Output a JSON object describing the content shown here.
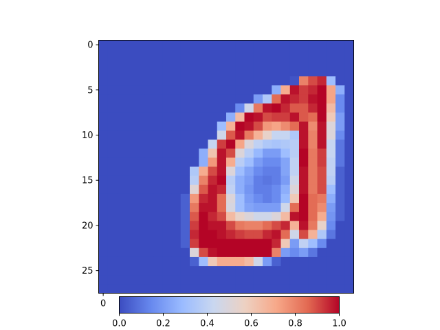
{
  "chart_data": {
    "type": "heatmap",
    "title": "",
    "xlabel": "",
    "ylabel": "",
    "colormap": "coolwarm",
    "colormap_stops": [
      "#3b4cc0",
      "#6788ee",
      "#9abbff",
      "#c9d7f0",
      "#edd1c2",
      "#f7a889",
      "#e26952",
      "#b40426"
    ],
    "vmin": 0.0,
    "vmax": 1.0,
    "image_rows": 28,
    "image_cols": 28,
    "yticks": [
      0,
      5,
      10,
      15,
      20,
      25
    ],
    "ytick_labels": [
      "0",
      "5",
      "10",
      "15",
      "20",
      "25"
    ],
    "xticks": [
      0
    ],
    "xtick_labels": [
      "0"
    ],
    "colorbar": {
      "orientation": "horizontal",
      "placement": "bottom",
      "ticks": [
        0.0,
        0.2,
        0.4,
        0.6,
        0.8,
        1.0
      ],
      "tick_labels": [
        "0.0",
        "0.2",
        "0.4",
        "0.6",
        "0.8",
        "1.0"
      ]
    },
    "values": [
      [
        0,
        0,
        0,
        0,
        0,
        0,
        0,
        0,
        0,
        0,
        0,
        0,
        0,
        0,
        0,
        0,
        0,
        0,
        0,
        0,
        0,
        0,
        0,
        0,
        0,
        0,
        0,
        0
      ],
      [
        0,
        0,
        0,
        0,
        0,
        0,
        0,
        0,
        0,
        0,
        0,
        0,
        0,
        0,
        0,
        0,
        0,
        0,
        0,
        0,
        0,
        0,
        0,
        0,
        0,
        0,
        0,
        0
      ],
      [
        0,
        0,
        0,
        0,
        0,
        0,
        0,
        0,
        0,
        0,
        0,
        0,
        0,
        0,
        0,
        0,
        0,
        0,
        0,
        0,
        0,
        0,
        0,
        0,
        0,
        0,
        0,
        0
      ],
      [
        0,
        0,
        0,
        0,
        0,
        0,
        0,
        0,
        0,
        0,
        0,
        0,
        0,
        0,
        0,
        0,
        0,
        0,
        0,
        0,
        0,
        0,
        0,
        0,
        0,
        0,
        0,
        0
      ],
      [
        0,
        0,
        0,
        0,
        0,
        0,
        0,
        0,
        0,
        0,
        0,
        0,
        0,
        0,
        0,
        0,
        0,
        0,
        0,
        0,
        0,
        0.02,
        0.8,
        0.9,
        0.95,
        0.3,
        0,
        0
      ],
      [
        0,
        0,
        0,
        0,
        0,
        0,
        0,
        0,
        0,
        0,
        0,
        0,
        0,
        0,
        0,
        0,
        0,
        0,
        0,
        0.25,
        0.7,
        0.98,
        0.92,
        0.95,
        1.0,
        0.72,
        0.25,
        0
      ],
      [
        0,
        0,
        0,
        0,
        0,
        0,
        0,
        0,
        0,
        0,
        0,
        0,
        0,
        0,
        0,
        0,
        0,
        0.2,
        0.35,
        0.85,
        0.98,
        0.95,
        0.92,
        0.98,
        1.0,
        0.72,
        0.15,
        0
      ],
      [
        0,
        0,
        0,
        0,
        0,
        0,
        0,
        0,
        0,
        0,
        0,
        0,
        0,
        0,
        0,
        0.15,
        0.45,
        0.82,
        0.98,
        1.0,
        0.95,
        0.88,
        0.88,
        0.95,
        1.0,
        0.65,
        0.15,
        0
      ],
      [
        0,
        0,
        0,
        0,
        0,
        0,
        0,
        0,
        0,
        0,
        0,
        0,
        0,
        0,
        0.25,
        0.65,
        1.0,
        0.98,
        0.9,
        0.92,
        0.92,
        0.98,
        0.88,
        0.85,
        1.0,
        0.6,
        0.2,
        0
      ],
      [
        0,
        0,
        0,
        0,
        0,
        0,
        0,
        0,
        0,
        0,
        0,
        0,
        0,
        0.3,
        0.68,
        1.0,
        0.98,
        0.9,
        0.75,
        0.72,
        0.78,
        0.85,
        0.98,
        0.78,
        0.98,
        0.5,
        0.2,
        0
      ],
      [
        0,
        0,
        0,
        0,
        0,
        0,
        0,
        0,
        0,
        0,
        0,
        0,
        0,
        0.45,
        0.88,
        0.98,
        0.82,
        0.68,
        0.55,
        0.42,
        0.42,
        0.35,
        0.98,
        0.8,
        0.98,
        0.5,
        0.15,
        0
      ],
      [
        0,
        0,
        0,
        0,
        0,
        0,
        0,
        0,
        0,
        0,
        0,
        0,
        0.42,
        0.92,
        1.0,
        0.72,
        0.5,
        0.4,
        0.35,
        0.33,
        0.35,
        0.38,
        0.98,
        0.8,
        0.98,
        0.42,
        0.1,
        0
      ],
      [
        0,
        0,
        0,
        0,
        0,
        0,
        0,
        0,
        0,
        0,
        0,
        0.25,
        0.62,
        0.98,
        0.9,
        0.5,
        0.38,
        0.28,
        0.2,
        0.2,
        0.3,
        0.38,
        1.0,
        0.82,
        0.92,
        0.42,
        0.1,
        0
      ],
      [
        0,
        0,
        0,
        0,
        0,
        0,
        0,
        0,
        0,
        0,
        0,
        0.25,
        0.75,
        0.98,
        0.7,
        0.38,
        0.3,
        0.2,
        0.15,
        0.15,
        0.22,
        0.4,
        1.0,
        0.82,
        0.92,
        0.4,
        0.1,
        0
      ],
      [
        0,
        0,
        0,
        0,
        0,
        0,
        0,
        0,
        0,
        0,
        0.35,
        0.7,
        0.9,
        0.98,
        0.5,
        0.3,
        0.22,
        0.15,
        0.12,
        0.12,
        0.22,
        0.4,
        0.98,
        0.82,
        0.9,
        0.4,
        0.05,
        0
      ],
      [
        0,
        0,
        0,
        0,
        0,
        0,
        0,
        0,
        0,
        0,
        0.38,
        0.8,
        0.95,
        1.0,
        0.38,
        0.25,
        0.2,
        0.12,
        0.1,
        0.12,
        0.2,
        0.45,
        0.98,
        0.82,
        0.9,
        0.38,
        0.05,
        0
      ],
      [
        0,
        0,
        0,
        0,
        0,
        0,
        0,
        0,
        0,
        0,
        0.52,
        0.88,
        0.98,
        0.95,
        0.4,
        0.25,
        0.18,
        0.12,
        0.12,
        0.15,
        0.25,
        0.5,
        0.98,
        0.82,
        0.9,
        0.3,
        0.05,
        0
      ],
      [
        0,
        0,
        0,
        0,
        0,
        0,
        0,
        0,
        0,
        0.05,
        0.75,
        0.95,
        0.98,
        0.85,
        0.5,
        0.3,
        0.2,
        0.15,
        0.12,
        0.15,
        0.28,
        0.6,
        1.0,
        0.85,
        0.82,
        0.25,
        0.05,
        0
      ],
      [
        0,
        0,
        0,
        0,
        0,
        0,
        0,
        0,
        0,
        0.05,
        0.82,
        0.98,
        0.98,
        0.85,
        0.48,
        0.3,
        0.22,
        0.2,
        0.2,
        0.2,
        0.45,
        0.85,
        1.0,
        0.85,
        0.78,
        0.2,
        0.05,
        0
      ],
      [
        0,
        0,
        0,
        0,
        0,
        0,
        0,
        0,
        0,
        0.05,
        0.88,
        1.0,
        0.95,
        0.9,
        0.65,
        0.55,
        0.5,
        0.45,
        0.45,
        0.5,
        0.65,
        0.98,
        1.0,
        0.85,
        0.7,
        0.18,
        0.05,
        0
      ],
      [
        0,
        0,
        0,
        0,
        0,
        0,
        0,
        0,
        0,
        0.05,
        0.92,
        1.0,
        0.98,
        0.98,
        0.9,
        0.82,
        0.8,
        0.8,
        0.85,
        0.9,
        0.95,
        0.68,
        0.98,
        0.82,
        0.55,
        0.15,
        0,
        0
      ],
      [
        0,
        0,
        0,
        0,
        0,
        0,
        0,
        0,
        0,
        0.05,
        0.95,
        1.0,
        1.0,
        0.98,
        0.95,
        0.92,
        0.9,
        0.9,
        0.95,
        0.98,
        0.85,
        0.45,
        0.9,
        0.68,
        0.35,
        0.1,
        0,
        0
      ],
      [
        0,
        0,
        0,
        0,
        0,
        0,
        0,
        0,
        0,
        0.05,
        0.92,
        1.0,
        1.0,
        1.0,
        1.0,
        1.0,
        1.0,
        1.0,
        1.0,
        0.95,
        0.6,
        0.2,
        0.4,
        0.3,
        0.15,
        0,
        0,
        0
      ],
      [
        0,
        0,
        0,
        0,
        0,
        0,
        0,
        0,
        0,
        0,
        0.5,
        0.9,
        0.98,
        1.0,
        1.0,
        1.0,
        1.0,
        1.0,
        1.0,
        0.8,
        0.2,
        0.15,
        0.2,
        0.1,
        0,
        0,
        0,
        0
      ],
      [
        0,
        0,
        0,
        0,
        0,
        0,
        0,
        0,
        0,
        0,
        0.05,
        0.3,
        0.6,
        0.7,
        0.7,
        0.7,
        0.65,
        0.45,
        0.2,
        0.05,
        0,
        0,
        0,
        0,
        0,
        0,
        0,
        0
      ],
      [
        0,
        0,
        0,
        0,
        0,
        0,
        0,
        0,
        0,
        0,
        0,
        0,
        0,
        0,
        0,
        0,
        0,
        0,
        0,
        0,
        0,
        0,
        0,
        0,
        0,
        0,
        0,
        0
      ],
      [
        0,
        0,
        0,
        0,
        0,
        0,
        0,
        0,
        0,
        0,
        0,
        0,
        0,
        0,
        0,
        0,
        0,
        0,
        0,
        0,
        0,
        0,
        0,
        0,
        0,
        0,
        0,
        0
      ],
      [
        0,
        0,
        0,
        0,
        0,
        0,
        0,
        0,
        0,
        0,
        0,
        0,
        0,
        0,
        0,
        0,
        0,
        0,
        0,
        0,
        0,
        0,
        0,
        0,
        0,
        0,
        0,
        0
      ]
    ]
  }
}
